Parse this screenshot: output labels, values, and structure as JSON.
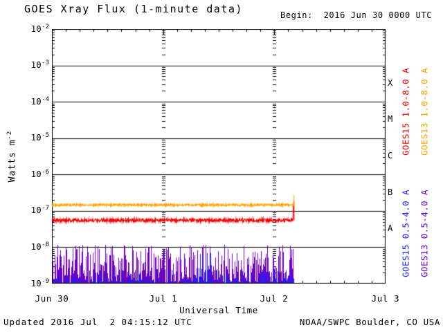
{
  "header": {
    "title": "GOES Xray Flux (1-minute data)",
    "begin_label": "Begin:  2016 Jun 30 0000 UTC"
  },
  "footer": {
    "updated": "Updated 2016 Jul  2 04:15:12 UTC",
    "source": "NOAA/SWPC Boulder, CO USA"
  },
  "colors": {
    "red": "#f40000",
    "orange": "#ffa200",
    "blue": "#1f1fff",
    "purple": "#6b00c2",
    "axis": "#000000",
    "background": "#ffffff"
  },
  "y_axis": {
    "title_base": "Watts m",
    "title_sup": "-2",
    "tick_exponents": [
      -2,
      -3,
      -4,
      -5,
      -6,
      -7,
      -8,
      -9
    ]
  },
  "x_axis": {
    "label": "Universal Time",
    "tick_labels": [
      "Jun 30",
      "Jul 1",
      "Jul 2",
      "Jul 3"
    ]
  },
  "flare_classes": [
    "X",
    "M",
    "C",
    "B",
    "A"
  ],
  "legend": [
    {
      "label": "GOES15 1.0-8.0 A",
      "color_key": "red",
      "col": 0,
      "row": 0
    },
    {
      "label": "GOES13 1.0-8.0 A",
      "color_key": "orange",
      "col": 1,
      "row": 0
    },
    {
      "label": "GOES15 0.5-4.0 A",
      "color_key": "blue",
      "col": 0,
      "row": 1
    },
    {
      "label": "GOES13 0.5-4.0 A",
      "color_key": "purple",
      "col": 1,
      "row": 1
    }
  ],
  "chart_data": {
    "type": "line",
    "title": "GOES Xray Flux (1-minute data)",
    "xlabel": "Universal Time",
    "ylabel": "Watts m-2",
    "y_scale": "log",
    "ylim": [
      1e-09,
      0.01
    ],
    "x_range_hours": [
      0,
      72
    ],
    "x_start_label": "2016 Jun 30 0000 UTC",
    "x_day_ticks_hours": [
      0,
      24,
      48,
      72
    ],
    "x_minor_tick_hours": 3,
    "data_end_hours": 52.25,
    "grid": {
      "horizontal_decade_lines": true,
      "vertical_dotted_day_lines_hours": [
        24,
        48
      ]
    },
    "flare_class_bands": [
      {
        "class": "X",
        "range": [
          0.0001,
          0.001
        ]
      },
      {
        "class": "M",
        "range": [
          1e-05,
          0.0001
        ]
      },
      {
        "class": "C",
        "range": [
          1e-06,
          1e-05
        ]
      },
      {
        "class": "B",
        "range": [
          1e-07,
          1e-06
        ]
      },
      {
        "class": "A",
        "range": [
          1e-08,
          1e-07
        ]
      }
    ],
    "series": [
      {
        "name": "GOES15 1.0-8.0 A",
        "color_key": "red",
        "style": "noisy-line",
        "approx_level_watts_m2": 5.5e-08,
        "noise_log_decades": 0.045,
        "end_rise_level": 1.35e-07,
        "end_rise_start_hours": 52.05,
        "end_spike_peak": 1.9e-07
      },
      {
        "name": "GOES13 1.0-8.0 A",
        "color_key": "orange",
        "style": "noisy-line",
        "approx_level_watts_m2": 1.45e-07,
        "noise_log_decades": 0.03,
        "end_rise_level": 1.7e-07,
        "end_rise_start_hours": 52.15,
        "end_spike_peak": 2.7e-07
      },
      {
        "name": "GOES13 0.5-4.0 A",
        "color_key": "purple",
        "style": "spikes",
        "baseline_watts_m2": 1.05e-09,
        "typical_spike_max": 8e-09,
        "peak_spike_max": 1.2e-08,
        "spike_decades": 1.05,
        "tail_power": 1.35
      },
      {
        "name": "GOES15 0.5-4.0 A",
        "color_key": "blue",
        "style": "spikes",
        "baseline_watts_m2": 1.05e-09,
        "typical_spike_max": 2.5e-09,
        "spike_decades": 0.38,
        "tail_power": 3.5,
        "burst": {
          "t_hours": [
            31.7,
            34.3
          ],
          "peak_watts_m2": 8e-09,
          "burst_decades": 0.88
        }
      }
    ]
  }
}
